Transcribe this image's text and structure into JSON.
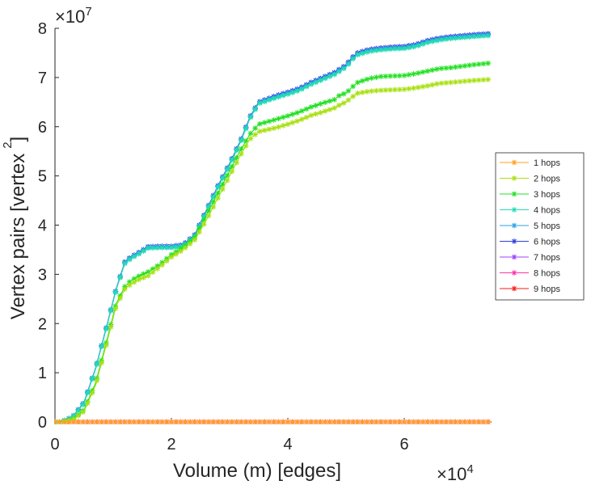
{
  "chart_data": {
    "type": "line",
    "title": "",
    "xlabel": "Volume (m) [edges]",
    "ylabel": "Vertex pairs [vertex",
    "ylabel_superscript": "2",
    "ylabel_close": "]",
    "xlim": [
      0,
      75000
    ],
    "ylim": [
      0,
      80000000
    ],
    "x_multiplier": {
      "base": "×10",
      "exponent": "4"
    },
    "y_multiplier": {
      "base": "×10",
      "exponent": "7"
    },
    "x_ticks": [
      0,
      20000,
      40000,
      60000
    ],
    "x_tick_labels": [
      "0",
      "2",
      "4",
      "6"
    ],
    "y_ticks": [
      0,
      10000000,
      20000000,
      30000000,
      40000000,
      50000000,
      60000000,
      70000000,
      80000000
    ],
    "y_tick_labels": [
      "0",
      "1",
      "2",
      "3",
      "4",
      "5",
      "6",
      "7",
      "8"
    ],
    "grid": false,
    "legend_position": "right",
    "marker": "asterisk",
    "series": [
      {
        "name": "9 hops",
        "color": "#ff1a1a",
        "x": [
          0,
          74500
        ],
        "values": [
          0,
          0
        ]
      },
      {
        "name": "8 hops",
        "color": "#ff33aa",
        "x": [
          0,
          74500
        ],
        "values": [
          0,
          0
        ]
      },
      {
        "name": "7 hops",
        "color": "#a040ff",
        "x": [
          0,
          1000,
          3000,
          5000,
          7000,
          9000,
          10500,
          12000,
          13000,
          14500,
          16000,
          18000,
          20000,
          22000,
          24000,
          26000,
          28000,
          30000,
          32000,
          33500,
          35000,
          38000,
          40000,
          42000,
          44000,
          46000,
          48000,
          50000,
          51000,
          52000,
          54000,
          56000,
          58000,
          60000,
          62000,
          64000,
          66000,
          68000,
          70000,
          72000,
          74500
        ],
        "values": [
          0,
          0,
          1000000,
          4000000,
          11000000,
          20000000,
          27000000,
          32500000,
          33500000,
          34500000,
          35600000,
          35700000,
          35700000,
          36000000,
          38000000,
          43000000,
          48000000,
          52500000,
          57500000,
          62000000,
          65000000,
          66300000,
          67000000,
          67800000,
          69000000,
          70000000,
          71000000,
          72500000,
          74000000,
          75000000,
          75700000,
          76000000,
          76200000,
          76300000,
          76700000,
          77500000,
          78000000,
          78300000,
          78500000,
          78700000,
          78900000
        ]
      },
      {
        "name": "6 hops",
        "color": "#2f3fe0",
        "x": [
          0,
          1000,
          3000,
          5000,
          7000,
          9000,
          10500,
          12000,
          13000,
          14500,
          16000,
          18000,
          20000,
          22000,
          24000,
          26000,
          28000,
          30000,
          32000,
          33500,
          35000,
          38000,
          40000,
          42000,
          44000,
          46000,
          48000,
          50000,
          51000,
          52000,
          54000,
          56000,
          58000,
          60000,
          62000,
          64000,
          66000,
          68000,
          70000,
          72000,
          74500
        ],
        "values": [
          0,
          0,
          1000000,
          4000000,
          11000000,
          20000000,
          27000000,
          32500000,
          33500000,
          34500000,
          35600000,
          35700000,
          35700000,
          36000000,
          38000000,
          43000000,
          48000000,
          52500000,
          57500000,
          62000000,
          65000000,
          66300000,
          67000000,
          67800000,
          69000000,
          70000000,
          71000000,
          72500000,
          74000000,
          75000000,
          75700000,
          76000000,
          76200000,
          76300000,
          76700000,
          77500000,
          78000000,
          78300000,
          78500000,
          78700000,
          78900000
        ]
      },
      {
        "name": "5 hops",
        "color": "#2aa0e8",
        "x": [
          0,
          1000,
          3000,
          5000,
          7000,
          9000,
          10500,
          12000,
          13000,
          14500,
          16000,
          18000,
          20000,
          22000,
          24000,
          26000,
          28000,
          30000,
          32000,
          33500,
          35000,
          38000,
          40000,
          42000,
          44000,
          46000,
          48000,
          50000,
          51000,
          52000,
          54000,
          56000,
          58000,
          60000,
          62000,
          64000,
          66000,
          68000,
          70000,
          72000,
          74500
        ],
        "values": [
          0,
          0,
          1000000,
          4000000,
          11000000,
          20000000,
          27000000,
          32400000,
          33400000,
          34400000,
          35500000,
          35600000,
          35600000,
          35900000,
          37900000,
          42900000,
          47900000,
          52400000,
          57400000,
          61900000,
          64900000,
          66100000,
          66800000,
          67600000,
          68800000,
          69800000,
          70800000,
          72300000,
          73800000,
          74800000,
          75500000,
          75800000,
          76000000,
          76100000,
          76500000,
          77300000,
          77800000,
          78100000,
          78300000,
          78500000,
          78700000
        ]
      },
      {
        "name": "4 hops",
        "color": "#22ddb0",
        "x": [
          0,
          1000,
          3000,
          5000,
          7000,
          9000,
          10500,
          12000,
          13000,
          14500,
          16000,
          18000,
          20000,
          22000,
          24000,
          26000,
          28000,
          30000,
          32000,
          33500,
          35000,
          38000,
          40000,
          42000,
          44000,
          46000,
          48000,
          50000,
          51000,
          52000,
          54000,
          56000,
          58000,
          60000,
          62000,
          64000,
          66000,
          68000,
          70000,
          72000,
          74500
        ],
        "values": [
          0,
          0,
          900000,
          3800000,
          10800000,
          19800000,
          26800000,
          32200000,
          33200000,
          34200000,
          35300000,
          35400000,
          35400000,
          35700000,
          37700000,
          42700000,
          47700000,
          52200000,
          57200000,
          61700000,
          64700000,
          65900000,
          66600000,
          67400000,
          68600000,
          69600000,
          70600000,
          72100000,
          73600000,
          74600000,
          75300000,
          75600000,
          75800000,
          75900000,
          76300000,
          77100000,
          77600000,
          77900000,
          78100000,
          78300000,
          78500000
        ]
      },
      {
        "name": "3 hops",
        "color": "#22e022",
        "x": [
          0,
          1000,
          3000,
          5000,
          7000,
          9000,
          10500,
          12000,
          13000,
          14500,
          16000,
          18000,
          20000,
          22000,
          24000,
          26000,
          28000,
          30000,
          32000,
          33500,
          35000,
          38000,
          40000,
          42000,
          44000,
          46000,
          48000,
          49000,
          50000,
          51000,
          52000,
          54000,
          56000,
          58000,
          60000,
          62000,
          64000,
          66000,
          68000,
          70000,
          72000,
          74500
        ],
        "values": [
          0,
          0,
          500000,
          2500000,
          8000000,
          17000000,
          24000000,
          27500000,
          28700000,
          29700000,
          30500000,
          32000000,
          34000000,
          35500000,
          37500000,
          42000000,
          46500000,
          51000000,
          55500000,
          58500000,
          60500000,
          61500000,
          62200000,
          63000000,
          64000000,
          64800000,
          65500000,
          66500000,
          66800000,
          68000000,
          69000000,
          69800000,
          70200000,
          70300000,
          70400000,
          70800000,
          71300000,
          71800000,
          72000000,
          72300000,
          72600000,
          72900000
        ]
      },
      {
        "name": "2 hops",
        "color": "#a8e010",
        "x": [
          0,
          1000,
          3000,
          5000,
          7000,
          9000,
          10500,
          12000,
          13000,
          14500,
          16000,
          18000,
          20000,
          22000,
          24000,
          26000,
          28000,
          30000,
          32000,
          33500,
          35000,
          38000,
          40000,
          42000,
          44000,
          46000,
          48000,
          49000,
          50000,
          51000,
          52000,
          54000,
          56000,
          58000,
          60000,
          62000,
          64000,
          66000,
          68000,
          70000,
          72000,
          74500
        ],
        "values": [
          0,
          0,
          400000,
          2200000,
          7500000,
          16500000,
          23500000,
          27000000,
          28000000,
          29000000,
          29700000,
          31500000,
          33500000,
          35000000,
          37000000,
          41000000,
          45500000,
          50000000,
          54500000,
          57500000,
          59000000,
          59800000,
          60500000,
          61300000,
          62300000,
          63000000,
          63800000,
          64500000,
          65000000,
          66000000,
          66800000,
          67200000,
          67400000,
          67500000,
          67600000,
          67900000,
          68300000,
          68800000,
          69000000,
          69200000,
          69400000,
          69600000
        ]
      },
      {
        "name": "1 hops",
        "color": "#ffa020",
        "x": [
          0,
          74500
        ],
        "values": [
          0,
          0
        ]
      }
    ]
  }
}
